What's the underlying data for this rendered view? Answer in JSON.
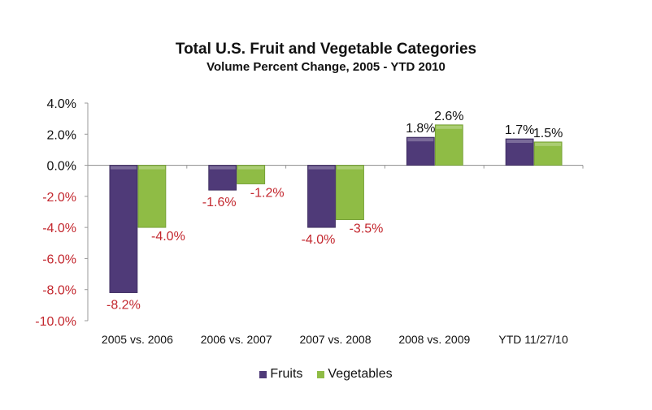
{
  "chart_data": {
    "type": "bar",
    "title": "Total U.S. Fruit and Vegetable Categories",
    "subtitle": "Volume Percent Change, 2005 - YTD 2010",
    "xlabel": "",
    "ylabel": "",
    "categories": [
      "2005 vs. 2006",
      "2006 vs. 2007",
      "2007 vs. 2008",
      "2008 vs. 2009",
      "YTD 11/27/10"
    ],
    "series": [
      {
        "name": "Fruits",
        "values": [
          -8.2,
          -1.6,
          -4.0,
          1.8,
          1.7
        ],
        "labels": [
          "-8.2%",
          "-1.6%",
          "-4.0%",
          "1.8%",
          "1.7%"
        ],
        "color": "#4f3a78"
      },
      {
        "name": "Vegetables",
        "values": [
          -4.0,
          -1.2,
          -3.5,
          2.6,
          1.5
        ],
        "labels": [
          "-4.0%",
          "-1.2%",
          "-3.5%",
          "2.6%",
          "1.5%"
        ],
        "color": "#8fbc45"
      }
    ],
    "ylim": [
      -10,
      4
    ],
    "yticks": [
      4,
      2,
      0,
      -2,
      -4,
      -6,
      -8,
      -10
    ],
    "ytick_labels": [
      "4.0%",
      "2.0%",
      "0.0%",
      "-2.0%",
      "-4.0%",
      "-6.0%",
      "-8.0%",
      "-10.0%"
    ],
    "negative_label_color": "#c3272e",
    "positive_label_color": "#111111",
    "grid": false,
    "legend_position": "bottom"
  }
}
